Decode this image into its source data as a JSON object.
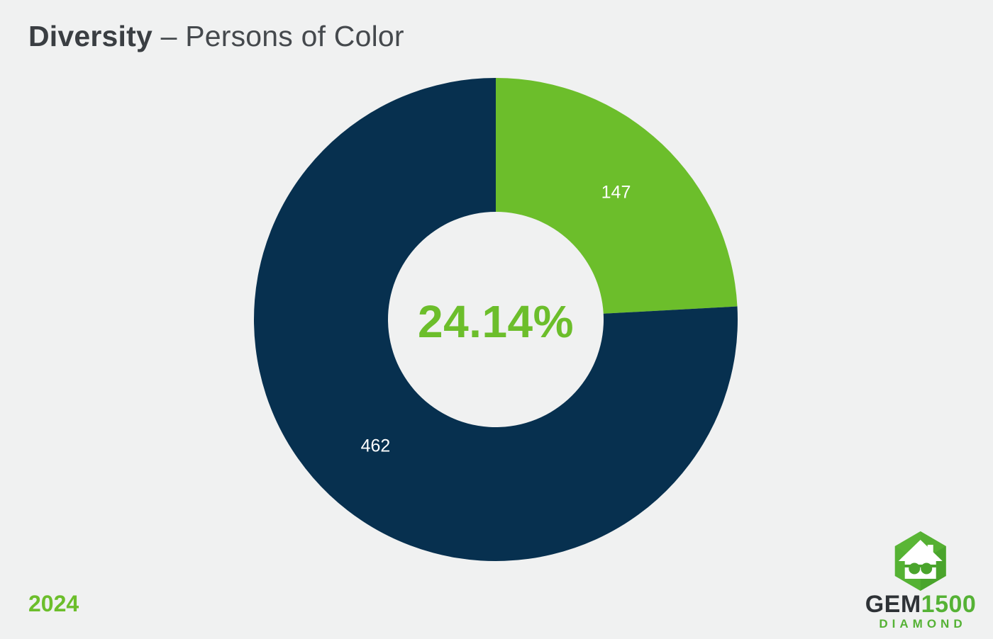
{
  "header": {
    "title_bold": "Diversity",
    "title_rest": " – Persons of Color"
  },
  "chart_data": {
    "type": "pie",
    "subtype": "donut",
    "title": "Diversity – Persons of Color",
    "values": [
      147,
      462
    ],
    "colors": [
      "#6CBE2B",
      "#07304F"
    ],
    "value_labels": [
      "147",
      "462"
    ],
    "center_label": "24.14%",
    "percent_highlight": 24.14,
    "start_angle_deg": 0,
    "direction": "clockwise",
    "inner_radius_ratio": 0.446,
    "legend": "none",
    "background": "#F0F1F1"
  },
  "footer": {
    "year": "2024"
  },
  "logo": {
    "brand_bold": "GEM",
    "brand_number": "1500",
    "tagline": "DIAMOND",
    "icon": "house-with-sunglasses-in-hexagon"
  },
  "colors": {
    "accent_green": "#6CBE2B",
    "navy": "#07304F",
    "title_text": "#3E4347",
    "background": "#F0F1F1"
  }
}
